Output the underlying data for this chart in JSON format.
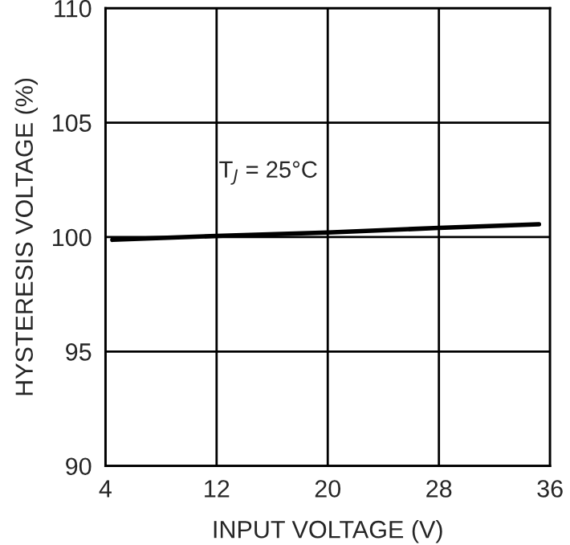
{
  "chart_data": {
    "type": "line",
    "xlabel": "INPUT VOLTAGE (V)",
    "ylabel": "HYSTERESIS VOLTAGE (%)",
    "x": [
      4.5,
      12,
      20,
      28,
      35.2
    ],
    "series": [
      {
        "color": "#000000",
        "values": [
          99.88,
          100.05,
          100.2,
          100.4,
          100.56
        ]
      }
    ],
    "annotations": [
      "T$_{J}$ = 25°C"
    ],
    "xlim": [
      4,
      36
    ],
    "xticks": [
      4,
      12,
      20,
      28,
      36
    ],
    "ylim": [
      90,
      110
    ],
    "yticks": [
      90,
      95,
      100,
      105,
      110
    ],
    "grid": true
  }
}
